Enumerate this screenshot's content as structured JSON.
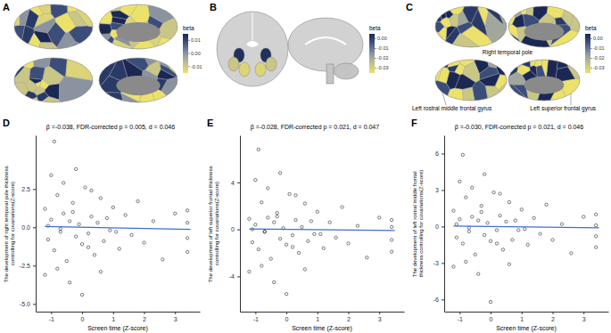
{
  "brain_maps": [
    {
      "panel": "A",
      "colorbar": {
        "title": "beta",
        "range": [
          -0.015,
          0.015
        ],
        "ticks": [
          0.01,
          {
            "value": 0,
            "label": "0.00"
          },
          -0.01
        ]
      }
    },
    {
      "panel": "B",
      "colorbar": {
        "title": "beta",
        "range": [
          -0.035,
          0.005
        ],
        "ticks": [
          {
            "value": 0,
            "label": "0.00"
          },
          -0.01,
          -0.02,
          -0.03
        ]
      }
    },
    {
      "panel": "C",
      "colorbar": {
        "title": "beta",
        "range": [
          -0.035,
          0.005
        ],
        "ticks": [
          {
            "value": 0,
            "label": "0.00"
          },
          -0.01,
          -0.02,
          -0.03
        ]
      },
      "annotations": [
        "Right temporal pole",
        "Left rostral middle frontal gyrus",
        "Left superior frontal gyrus"
      ]
    }
  ],
  "chart_data": [
    {
      "type": "scatter",
      "panel": "D",
      "title": "β =-0.038, FDR-corrected p = 0.005, d = 0.046",
      "x_label": "Screen time (Z-score)",
      "y_label": "The development of right temporal pole thickness controlling for covariations(Z-score)",
      "xlim": [
        -1.5,
        3.8
      ],
      "ylim": [
        -5.5,
        6
      ],
      "xticks": [
        -1,
        0,
        1,
        2,
        3
      ],
      "yticks": [
        {
          "value": -5,
          "label": "-5.0"
        },
        {
          "value": -2.5,
          "label": "-2.5"
        },
        {
          "value": 0,
          "label": "0.0"
        },
        {
          "value": 2.5,
          "label": "2.5"
        }
      ],
      "grid": false,
      "series": [
        {
          "type": "scatter",
          "color": "#000000",
          "marker": "circle-open",
          "x": [
            -1.2,
            -1.1,
            -1.0,
            -0.9,
            -0.8,
            -0.7,
            -0.6,
            -0.5,
            -0.4,
            -0.3,
            -0.2,
            -0.1,
            0.0,
            0.1,
            0.2,
            0.3,
            0.4,
            0.5,
            0.6,
            0.7,
            0.8,
            0.9,
            1.0,
            1.2,
            1.4,
            1.6,
            1.8,
            2.0,
            2.3,
            2.6,
            3.0,
            3.4,
            3.4,
            3.4,
            3.4,
            -1.2,
            -1.0,
            -0.8,
            -0.6,
            -0.4,
            -0.2,
            0.0,
            0.3,
            0.6,
            -1.1,
            -0.7,
            -0.3,
            0.2,
            1.1,
            -0.9
          ],
          "values": [
            1.2,
            -0.8,
            0.5,
            -1.5,
            2.1,
            -0.3,
            0.9,
            -2.2,
            0.4,
            1.6,
            -0.6,
            0.2,
            -1.1,
            2.6,
            -0.4,
            0.7,
            -1.8,
            0.3,
            1.9,
            -0.9,
            0.6,
            -0.2,
            1.3,
            -1.4,
            0.8,
            -0.5,
            1.7,
            -1.0,
            0.4,
            -2.1,
            0.9,
            1.1,
            -0.7,
            -1.6,
            0.3,
            -3.1,
            3.4,
            -2.7,
            2.9,
            -3.6,
            3.8,
            -4.4,
            2.4,
            -2.9,
            0.1,
            -0.1,
            1.0,
            -1.3,
            -0.3,
            5.6
          ]
        },
        {
          "type": "line",
          "color": "#3b6fd6",
          "line_style": "solid",
          "x": [
            -1.2,
            3.5
          ],
          "values": [
            0.05,
            -0.13
          ]
        }
      ]
    },
    {
      "type": "scatter",
      "panel": "E",
      "title": "β =-0.028, FDR-corrected p = 0.021, d = 0.047",
      "x_label": "Screen time (Z-score)",
      "y_label": "The development of left superior frontal thickness controlling for covariations(Z-score)",
      "xlim": [
        -1.5,
        3.8
      ],
      "ylim": [
        -7,
        8
      ],
      "xticks": [
        -1,
        0,
        1,
        2,
        3
      ],
      "yticks": [
        -4,
        0,
        4
      ],
      "grid": false,
      "series": [
        {
          "type": "scatter",
          "color": "#000000",
          "marker": "circle-open",
          "x": [
            -1.2,
            -1.1,
            -1.0,
            -0.9,
            -0.8,
            -0.7,
            -0.6,
            -0.5,
            -0.4,
            -0.3,
            -0.2,
            -0.1,
            0.0,
            0.1,
            0.2,
            0.3,
            0.4,
            0.5,
            0.6,
            0.7,
            0.8,
            0.9,
            1.0,
            1.2,
            1.4,
            1.6,
            1.8,
            2.0,
            2.3,
            2.6,
            3.0,
            3.4,
            3.4,
            3.4,
            3.4,
            -1.2,
            -1.0,
            -0.8,
            -0.6,
            -0.4,
            -0.2,
            0.0,
            0.3,
            0.6,
            -1.1,
            -0.7,
            -0.3,
            0.2,
            1.1,
            -0.9
          ],
          "values": [
            0.9,
            -1.1,
            0.4,
            -1.7,
            2.3,
            -0.2,
            1.0,
            -2.5,
            0.6,
            1.4,
            -0.8,
            0.1,
            -1.3,
            3.0,
            -0.5,
            0.8,
            -2.0,
            0.2,
            2.2,
            -1.0,
            0.7,
            -0.4,
            1.5,
            -1.6,
            0.6,
            -0.7,
            1.9,
            -1.2,
            0.3,
            -2.4,
            1.0,
            0.8,
            -0.9,
            -1.9,
            0.2,
            -3.6,
            4.2,
            -3.1,
            3.5,
            -4.5,
            4.8,
            -5.5,
            2.9,
            -3.4,
            0.0,
            -0.2,
            1.1,
            -1.5,
            -0.4,
            6.8
          ]
        },
        {
          "type": "line",
          "color": "#3b6fd6",
          "line_style": "solid",
          "x": [
            -1.2,
            3.5
          ],
          "values": [
            0.04,
            -0.1
          ]
        }
      ]
    },
    {
      "type": "scatter",
      "panel": "F",
      "title": "β =-0.030, FDR-corrected p = 0.021, d = 0.046",
      "x_label": "Screen time (Z-score)",
      "y_label": "The development of left rostral middle frontal thickness controlling for covariations(Z-score)",
      "xlim": [
        -1.5,
        3.8
      ],
      "ylim": [
        -7,
        7.5
      ],
      "xticks": [
        -1,
        0,
        1,
        2,
        3
      ],
      "yticks": [
        -6,
        -3,
        0,
        3,
        6
      ],
      "grid": false,
      "series": [
        {
          "type": "scatter",
          "color": "#000000",
          "marker": "circle-open",
          "x": [
            -1.2,
            -1.1,
            -1.0,
            -0.9,
            -0.8,
            -0.7,
            -0.6,
            -0.5,
            -0.4,
            -0.3,
            -0.2,
            -0.1,
            0.0,
            0.1,
            0.2,
            0.3,
            0.4,
            0.5,
            0.6,
            0.7,
            0.8,
            0.9,
            1.0,
            1.2,
            1.4,
            1.6,
            1.8,
            2.0,
            2.3,
            2.6,
            3.0,
            3.4,
            3.4,
            3.4,
            3.4,
            -1.2,
            -1.0,
            -0.8,
            -0.6,
            -0.4,
            -0.2,
            0.0,
            0.3,
            0.6,
            -1.1,
            -0.7,
            -0.3,
            0.2,
            1.1,
            -0.9
          ],
          "values": [
            1.3,
            -0.9,
            0.6,
            -1.4,
            2.4,
            -0.4,
            0.8,
            -2.3,
            0.5,
            1.7,
            -0.7,
            0.3,
            -1.2,
            2.8,
            -0.3,
            0.9,
            -1.9,
            0.4,
            2.0,
            -1.1,
            0.5,
            -0.3,
            1.4,
            -1.5,
            0.7,
            -0.6,
            1.8,
            -1.1,
            0.2,
            -2.2,
            0.8,
            1.0,
            -0.8,
            -1.7,
            0.1,
            -3.3,
            3.7,
            -2.9,
            3.2,
            -3.9,
            4.3,
            -6.2,
            2.7,
            -3.1,
            0.2,
            -0.1,
            1.2,
            -1.4,
            -0.2,
            5.9
          ]
        },
        {
          "type": "line",
          "color": "#3b6fd6",
          "line_style": "solid",
          "x": [
            -1.2,
            3.5
          ],
          "values": [
            0.04,
            -0.11
          ]
        }
      ]
    }
  ]
}
